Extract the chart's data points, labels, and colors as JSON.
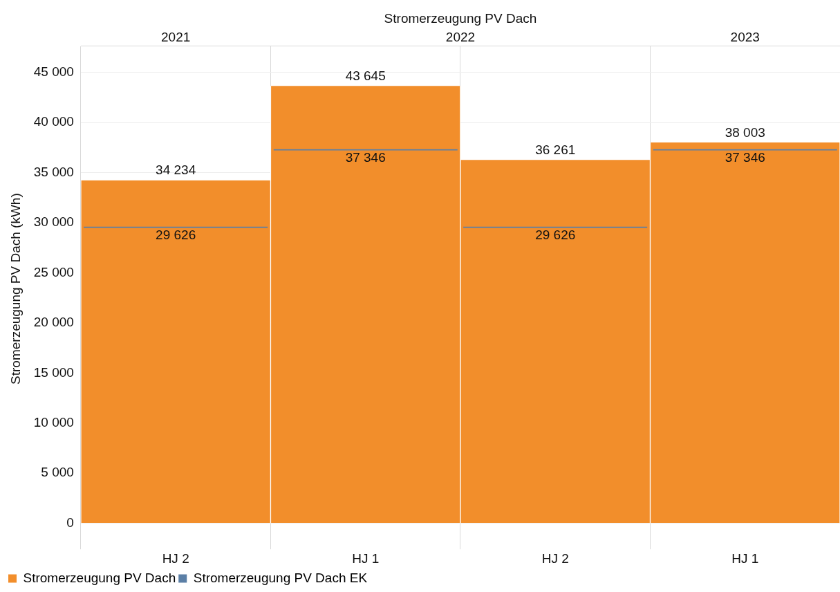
{
  "chart_data": {
    "type": "bar",
    "title": "Stromerzeugung PV Dach",
    "ylabel": "Stromerzeugung PV Dach (kWh)",
    "categories": [
      "HJ 2",
      "HJ 1",
      "HJ 2",
      "HJ 1"
    ],
    "series": [
      {
        "name": "Stromerzeugung PV Dach",
        "color": "#f28e2b",
        "values": [
          34234,
          43645,
          36261,
          38003
        ],
        "value_labels": [
          "34 234",
          "43 645",
          "36 261",
          "38 003"
        ]
      },
      {
        "name": "Stromerzeugung PV Dach EK",
        "color": "#5b7fa6",
        "values": [
          29626,
          37346,
          29626,
          37346
        ],
        "value_labels": [
          "29 626",
          "37 346",
          "29 626",
          "37 346"
        ]
      }
    ],
    "annotations": [
      "2021",
      "2022",
      "2023"
    ],
    "ylim": [
      -800,
      47600
    ],
    "yticks": [
      {
        "value": 0,
        "label": "0"
      },
      {
        "value": 5000,
        "label": "5 000"
      },
      {
        "value": 10000,
        "label": "10 000"
      },
      {
        "value": 15000,
        "label": "15 000"
      },
      {
        "value": 20000,
        "label": "20 000"
      },
      {
        "value": 25000,
        "label": "25 000"
      },
      {
        "value": 30000,
        "label": "30 000"
      },
      {
        "value": 35000,
        "label": "35 000"
      },
      {
        "value": 40000,
        "label": "40 000"
      },
      {
        "value": 45000,
        "label": "45 000"
      }
    ],
    "grid": true,
    "legend": "bottom left"
  }
}
